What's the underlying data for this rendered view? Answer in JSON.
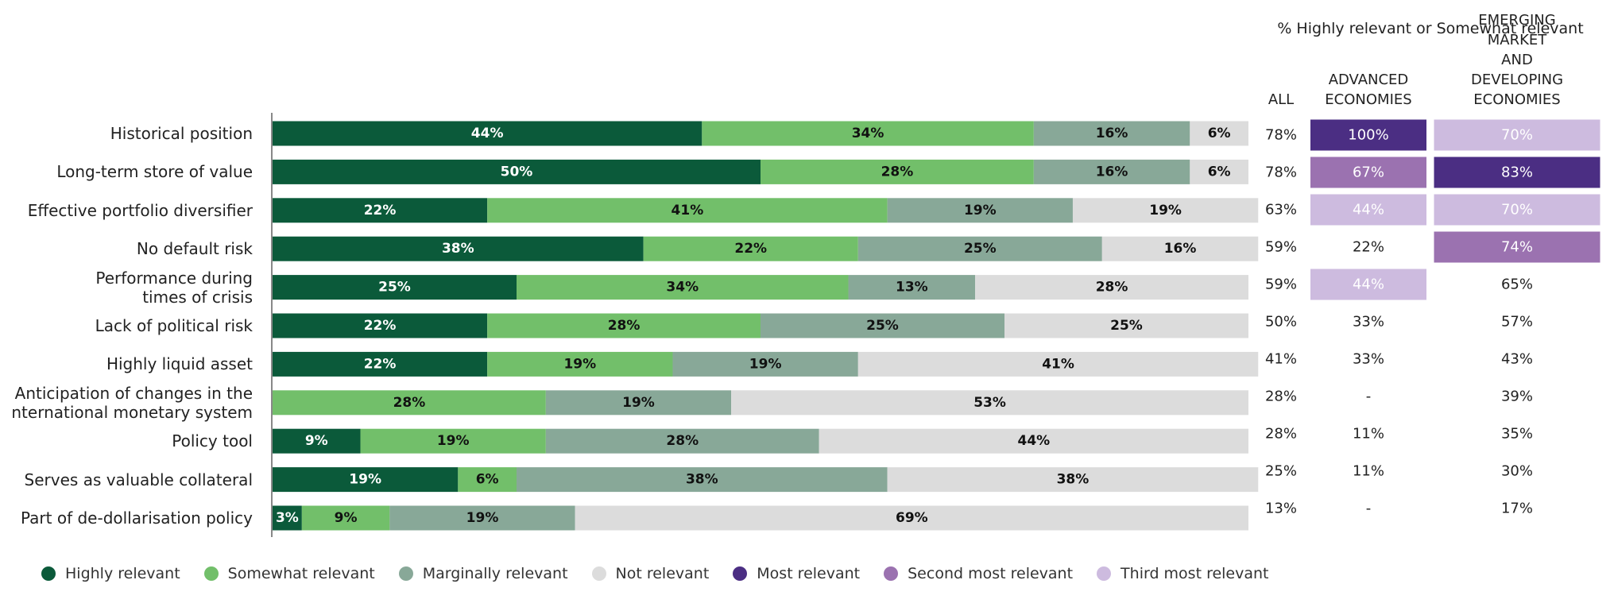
{
  "chart_data": {
    "type": "stacked-bar-horizontal",
    "categories": [
      "Historical position",
      "Long-term store of value",
      "Effective portfolio diversifier",
      "No default risk",
      "Performance during\ntimes of crisis",
      "Lack of political risk",
      "Highly liquid asset",
      "Anticipation of changes in the\nnternational monetary system",
      "Policy tool",
      "Serves as valuable collateral",
      "Part of de-dollarisation policy"
    ],
    "xlim": [
      0,
      100
    ],
    "series": [
      {
        "name": "Highly relevant",
        "color": "#0b5a3a",
        "values": [
          44,
          50,
          22,
          38,
          25,
          22,
          22,
          null,
          9,
          19,
          3
        ],
        "value_labels": [
          "44%",
          "50%",
          "22%",
          "38%",
          "25%",
          "22%",
          "22%",
          null,
          "9%",
          "19%",
          "3%"
        ]
      },
      {
        "name": "Somewhat relevant",
        "color": "#72bf6a",
        "values": [
          34,
          28,
          41,
          22,
          34,
          28,
          19,
          28,
          19,
          6,
          9
        ],
        "value_labels": [
          "34%",
          "28%",
          "41%",
          "22%",
          "34%",
          "28%",
          "19%",
          "28%",
          "19%",
          "6%",
          "9%"
        ]
      },
      {
        "name": "Marginally relevant",
        "color": "#88a898",
        "values": [
          16,
          16,
          19,
          25,
          13,
          25,
          19,
          19,
          28,
          38,
          19
        ],
        "value_labels": [
          "16%",
          "16%",
          "19%",
          "25%",
          "13%",
          "25%",
          "19%",
          "19%",
          "28%",
          "38%",
          "19%"
        ]
      },
      {
        "name": "Not relevant",
        "color": "#dcdcdc",
        "values": [
          6,
          6,
          19,
          16,
          28,
          25,
          41,
          53,
          44,
          38,
          69
        ],
        "value_labels": [
          "6%",
          "6%",
          "19%",
          "16%",
          "28%",
          "25%",
          "41%",
          "53%",
          "44%",
          "38%",
          "69%"
        ]
      }
    ]
  },
  "table": {
    "title": "% Highly relevant or Somewhat relevant",
    "columns": [
      "ALL",
      "ADVANCED\nECONOMIES",
      "EMERGING MARKET\nAND DEVELOPING\nECONOMIES"
    ],
    "rows": [
      [
        "78%",
        "100%",
        "70%"
      ],
      [
        "78%",
        "67%",
        "83%"
      ],
      [
        "63%",
        "44%",
        "70%"
      ],
      [
        "59%",
        "22%",
        "74%"
      ],
      [
        "59%",
        "44%",
        "65%"
      ],
      [
        "50%",
        "33%",
        "57%"
      ],
      [
        "41%",
        "33%",
        "43%"
      ],
      [
        "28%",
        "-",
        "39%"
      ],
      [
        "28%",
        "11%",
        "35%"
      ],
      [
        "25%",
        "11%",
        "30%"
      ],
      [
        "13%",
        "-",
        "17%"
      ]
    ],
    "ranks": [
      [
        null,
        1,
        3
      ],
      [
        null,
        2,
        1
      ],
      [
        null,
        3,
        3
      ],
      [
        null,
        null,
        2
      ],
      [
        null,
        3,
        null
      ],
      [
        null,
        null,
        null
      ],
      [
        null,
        null,
        null
      ],
      [
        null,
        null,
        null
      ],
      [
        null,
        null,
        null
      ],
      [
        null,
        null,
        null
      ],
      [
        null,
        null,
        null
      ]
    ]
  },
  "rank_legend": [
    {
      "name": "Most relevant",
      "color": "#4b2e83"
    },
    {
      "name": "Second most relevant",
      "color": "#9b72b0"
    },
    {
      "name": "Third most relevant",
      "color": "#cdbbdf"
    }
  ]
}
